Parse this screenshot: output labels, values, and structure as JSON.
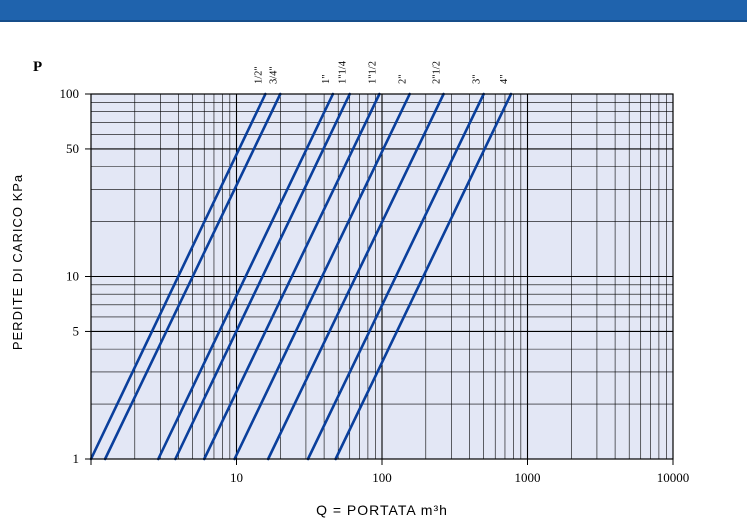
{
  "chart_data": {
    "type": "line",
    "title": "",
    "p_label": "P",
    "ylabel": "PERDITE DI CARICO KPa",
    "xlabel": "Q = PORTATA m³h",
    "x_scale": "log",
    "y_scale": "log",
    "xlim": [
      1,
      10000
    ],
    "ylim": [
      1,
      100
    ],
    "x_ticks": [
      {
        "value": 10,
        "label": "10"
      },
      {
        "value": 100,
        "label": "100"
      },
      {
        "value": 1000,
        "label": "1000"
      },
      {
        "value": 10000,
        "label": "10000"
      }
    ],
    "y_ticks": [
      {
        "value": 1,
        "label": "1"
      },
      {
        "value": 5,
        "label": "5"
      },
      {
        "value": 10,
        "label": "10"
      },
      {
        "value": 50,
        "label": "50"
      },
      {
        "value": 100,
        "label": "100"
      }
    ],
    "grid": true,
    "line_color": "#0a3f9c",
    "plot_background": "#e3e7f5",
    "series": [
      {
        "name": "1/2\"",
        "points": [
          [
            1,
            1
          ],
          [
            15.8,
            100
          ]
        ]
      },
      {
        "name": "3/4\"",
        "points": [
          [
            1.25,
            1
          ],
          [
            20,
            100
          ]
        ]
      },
      {
        "name": "1\"",
        "points": [
          [
            2.9,
            1
          ],
          [
            46,
            100
          ]
        ]
      },
      {
        "name": "1\"1/4",
        "points": [
          [
            3.8,
            1
          ],
          [
            60,
            100
          ]
        ]
      },
      {
        "name": "1\"1/2",
        "points": [
          [
            6,
            1
          ],
          [
            96,
            100
          ]
        ]
      },
      {
        "name": "2\"",
        "points": [
          [
            9.7,
            1
          ],
          [
            155,
            100
          ]
        ]
      },
      {
        "name": "2\"1/2",
        "points": [
          [
            16.5,
            1
          ],
          [
            265,
            100
          ]
        ]
      },
      {
        "name": "3\"",
        "points": [
          [
            31,
            1
          ],
          [
            500,
            100
          ]
        ]
      },
      {
        "name": "4\"",
        "points": [
          [
            48,
            1
          ],
          [
            770,
            100
          ]
        ]
      }
    ]
  }
}
